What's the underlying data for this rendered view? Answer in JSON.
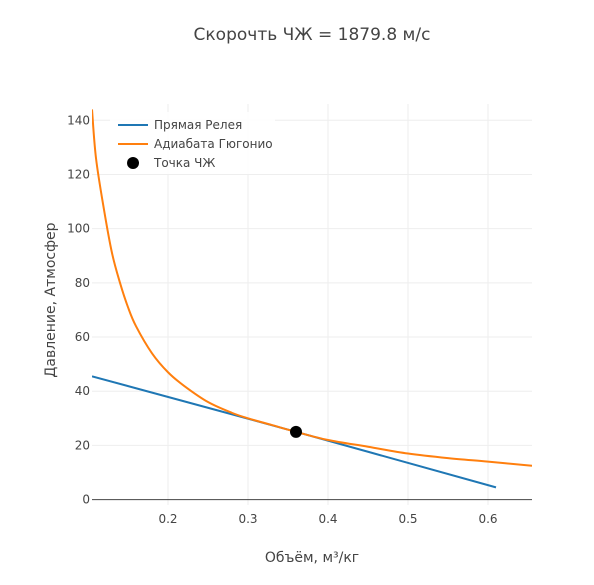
{
  "chart_data": {
    "type": "line",
    "title": "Скорочть ЧЖ = 1879.8 м/с",
    "xlabel": "Объём, м³/кг",
    "ylabel": "Давление, Атмосфер",
    "xlim": [
      0.105,
      0.655
    ],
    "ylim": [
      -2,
      146
    ],
    "xticks": [
      0.2,
      0.3,
      0.4,
      0.5,
      0.6
    ],
    "yticks": [
      0,
      20,
      40,
      60,
      80,
      100,
      120,
      140
    ],
    "x_tick_labels": [
      "0.2",
      "0.3",
      "0.4",
      "0.5",
      "0.6"
    ],
    "y_tick_labels": [
      "0",
      "20",
      "40",
      "60",
      "80",
      "100",
      "120",
      "140"
    ],
    "grid": true,
    "legend_position": "top-left",
    "series": [
      {
        "name": "Прямая Релея",
        "kind": "line",
        "color": "#1f77b4",
        "x": [
          0.105,
          0.36,
          0.61
        ],
        "y": [
          45.5,
          25.0,
          4.5
        ]
      },
      {
        "name": "Адиабата Гюгонио",
        "kind": "line",
        "color": "#ff7f0e",
        "x": [
          0.105,
          0.11,
          0.12,
          0.13,
          0.14,
          0.15,
          0.16,
          0.18,
          0.2,
          0.22,
          0.25,
          0.28,
          0.3,
          0.33,
          0.36,
          0.4,
          0.45,
          0.5,
          0.55,
          0.6,
          0.655
        ],
        "y": [
          144.0,
          126.0,
          107.0,
          91.0,
          80.0,
          71.0,
          64.0,
          54.0,
          47.0,
          42.0,
          36.0,
          32.0,
          30.0,
          27.5,
          25.0,
          22.0,
          19.5,
          17.0,
          15.3,
          14.0,
          12.5
        ]
      },
      {
        "name": "Точка ЧЖ",
        "kind": "marker",
        "color": "#000000",
        "x": [
          0.36
        ],
        "y": [
          25.0
        ]
      }
    ]
  }
}
